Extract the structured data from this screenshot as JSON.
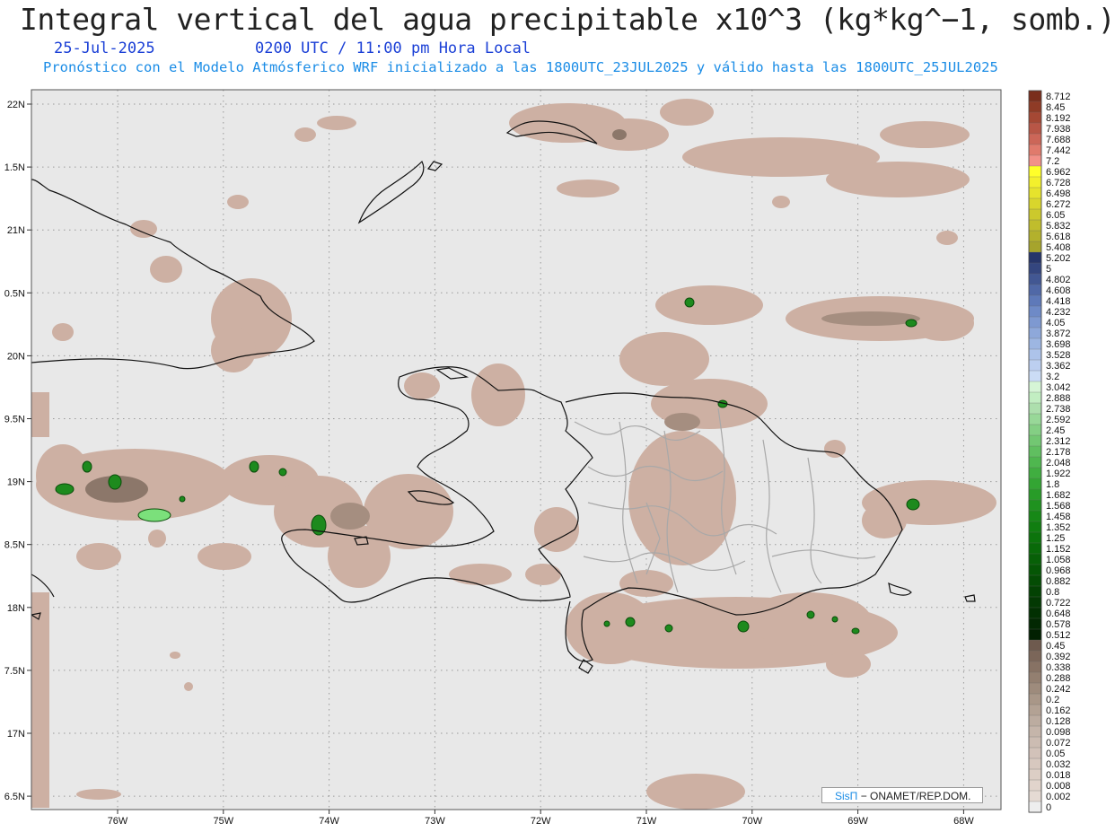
{
  "header": {
    "title": "Integral vertical del agua precipitable x10^3 (kg*kg^−1, somb.)",
    "date": "25-Jul-2025",
    "time": "0200 UTC / 11:00 pm Hora Local",
    "subtitle": "Pronóstico con el Modelo Atmósferico WRF inicializado a las 1800UTC_23JUL2025 y válido hasta las  1800UTC_25JUL2025"
  },
  "map": {
    "lat_labels": [
      "22N",
      "1.5N",
      "21N",
      "0.5N",
      "20N",
      "9.5N",
      "19N",
      "8.5N",
      "18N",
      "7.5N",
      "17N",
      "6.5N"
    ],
    "lon_labels": [
      "76W",
      "75W",
      "74W",
      "73W",
      "72W",
      "71W",
      "70W",
      "69W",
      "68W"
    ],
    "background_color": "#e8e8e8",
    "precip_color": "#cdb0a3"
  },
  "colorbar": {
    "labels": [
      "8.712",
      "8.45",
      "8.192",
      "7.938",
      "7.688",
      "7.442",
      "7.2",
      "6.962",
      "6.728",
      "6.498",
      "6.272",
      "6.05",
      "5.832",
      "5.618",
      "5.408",
      "5.202",
      "5",
      "4.802",
      "4.608",
      "4.418",
      "4.232",
      "4.05",
      "3.872",
      "3.698",
      "3.528",
      "3.362",
      "3.2",
      "3.042",
      "2.888",
      "2.738",
      "2.592",
      "2.45",
      "2.312",
      "2.178",
      "2.048",
      "1.922",
      "1.8",
      "1.682",
      "1.568",
      "1.458",
      "1.352",
      "1.25",
      "1.152",
      "1.058",
      "0.968",
      "0.882",
      "0.8",
      "0.722",
      "0.648",
      "0.578",
      "0.512",
      "0.45",
      "0.392",
      "0.338",
      "0.288",
      "0.242",
      "0.2",
      "0.162",
      "0.128",
      "0.098",
      "0.072",
      "0.05",
      "0.032",
      "0.018",
      "0.008",
      "0.002",
      "0"
    ],
    "colors": [
      "#7a2e1c",
      "#8f3b26",
      "#a54834",
      "#b85646",
      "#cc6658",
      "#e07a6c",
      "#f29088",
      "#ffff2a",
      "#f3f02c",
      "#e6e32c",
      "#d9d62c",
      "#ccc92c",
      "#c0bd2c",
      "#b3b12c",
      "#a6a42c",
      "#26356a",
      "#34467f",
      "#425793",
      "#5068a7",
      "#5e79b9",
      "#6e8ac7",
      "#7e99d1",
      "#8ea8da",
      "#9db6e2",
      "#adc3ea",
      "#bccff0",
      "#cbdcf5",
      "#d6f5d6",
      "#c2eec2",
      "#addfad",
      "#98d898",
      "#84cf84",
      "#72c772",
      "#60bf60",
      "#4fb74f",
      "#40ae40",
      "#33a533",
      "#289c28",
      "#1f921f",
      "#178817",
      "#117e11",
      "#0c740c",
      "#096a09",
      "#076007",
      "#055605",
      "#044c04",
      "#034203",
      "#033903",
      "#023002",
      "#022802",
      "#012001",
      "#6e5a4e",
      "#7b6659",
      "#877264",
      "#937f70",
      "#9e8b7c",
      "#a99788",
      "#b3a294",
      "#bcaca0",
      "#c5b5aa",
      "#ccbcb2",
      "#d2c2b9",
      "#d7c8bf",
      "#dccec5",
      "#e1d4cc",
      "#e5dad3",
      "#eeeeee"
    ]
  },
  "credit": {
    "brand": "SisΠ",
    "text": "− ONAMET/REP.DOM."
  }
}
